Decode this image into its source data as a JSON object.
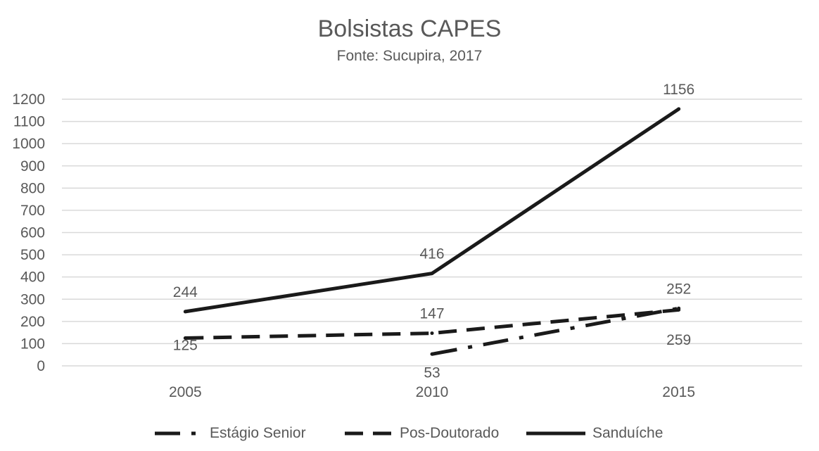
{
  "chart_data": {
    "type": "line",
    "title": "Bolsistas CAPES",
    "subtitle": "Fonte: Sucupira, 2017",
    "xlabel": "",
    "ylabel": "",
    "categories": [
      "2005",
      "2010",
      "2015"
    ],
    "ylim": [
      0,
      1200
    ],
    "yticks": [
      "0",
      "100",
      "200",
      "300",
      "400",
      "500",
      "600",
      "700",
      "800",
      "900",
      "1000",
      "1100",
      "1200"
    ],
    "grid": true,
    "legend_position": "bottom",
    "series": [
      {
        "name": "Estágio Senior",
        "values": [
          null,
          53,
          259
        ],
        "labels": [
          "",
          "53",
          "259"
        ],
        "color": "#1a1a1a",
        "style": "dash-dot"
      },
      {
        "name": "Pos-Doutorado",
        "values": [
          125,
          147,
          252
        ],
        "labels": [
          "125",
          "147",
          "252"
        ],
        "color": "#1a1a1a",
        "style": "dashed"
      },
      {
        "name": "Sanduíche",
        "values": [
          244,
          416,
          1156
        ],
        "labels": [
          "244",
          "416",
          "1156"
        ],
        "color": "#1a1a1a",
        "style": "solid"
      }
    ]
  }
}
